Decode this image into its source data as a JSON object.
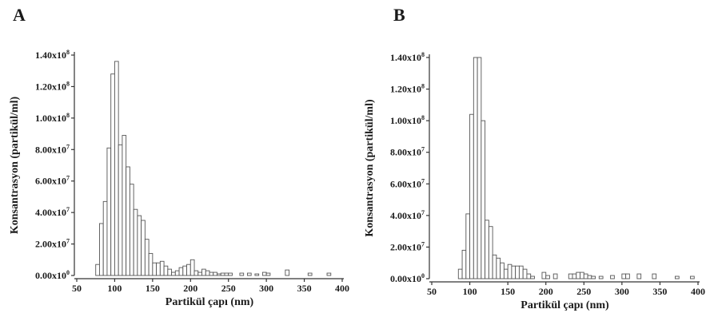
{
  "chart_data": [
    {
      "panel": "A",
      "type": "bar",
      "xlabel": "Partikül çapı (nm)",
      "ylabel": "Konsantrasyon (partikül/ml)",
      "xlim": [
        50,
        400
      ],
      "ylim": [
        0,
        140000000.0
      ],
      "x_ticks": [
        50,
        100,
        150,
        200,
        250,
        300,
        350,
        400
      ],
      "x_tick_labels": [
        "50",
        "100",
        "150",
        "200",
        "250",
        "300",
        "350",
        "400"
      ],
      "y_ticks": [
        0,
        20000000.0,
        40000000.0,
        60000000.0,
        80000000.0,
        100000000.0,
        120000000.0,
        140000000.0
      ],
      "y_tick_labels": [
        {
          "mantissa": "0.00x10",
          "exp": "0"
        },
        {
          "mantissa": "2.00x10",
          "exp": "7"
        },
        {
          "mantissa": "4.00x10",
          "exp": "7"
        },
        {
          "mantissa": "6.00x10",
          "exp": "7"
        },
        {
          "mantissa": "8.00x10",
          "exp": "7"
        },
        {
          "mantissa": "1.00x10",
          "exp": "8"
        },
        {
          "mantissa": "1.20x10",
          "exp": "8"
        },
        {
          "mantissa": "1.40x10",
          "exp": "8"
        }
      ],
      "bin_width": 5,
      "bins": [
        {
          "x": 77.5,
          "y": 7000000.0
        },
        {
          "x": 82.5,
          "y": 33000000.0
        },
        {
          "x": 87.5,
          "y": 47000000.0
        },
        {
          "x": 92.5,
          "y": 81000000.0
        },
        {
          "x": 97.5,
          "y": 128000000.0
        },
        {
          "x": 102.5,
          "y": 136000000.0
        },
        {
          "x": 107.5,
          "y": 83000000.0
        },
        {
          "x": 112.5,
          "y": 89000000.0
        },
        {
          "x": 117.5,
          "y": 69000000.0
        },
        {
          "x": 122.5,
          "y": 58000000.0
        },
        {
          "x": 127.5,
          "y": 42000000.0
        },
        {
          "x": 132.5,
          "y": 38000000.0
        },
        {
          "x": 137.5,
          "y": 35000000.0
        },
        {
          "x": 142.5,
          "y": 23000000.0
        },
        {
          "x": 147.5,
          "y": 14000000.0
        },
        {
          "x": 152.5,
          "y": 8000000.0
        },
        {
          "x": 157.5,
          "y": 8000000.0
        },
        {
          "x": 162.5,
          "y": 9000000.0
        },
        {
          "x": 167.5,
          "y": 6000000.0
        },
        {
          "x": 172.5,
          "y": 4000000.0
        },
        {
          "x": 177.5,
          "y": 2000000.0
        },
        {
          "x": 182.5,
          "y": 3000000.0
        },
        {
          "x": 187.5,
          "y": 5000000.0
        },
        {
          "x": 192.5,
          "y": 6000000.0
        },
        {
          "x": 197.5,
          "y": 7000000.0
        },
        {
          "x": 202.5,
          "y": 10000000.0
        },
        {
          "x": 207.5,
          "y": 3000000.0
        },
        {
          "x": 212.5,
          "y": 2000000.0
        },
        {
          "x": 217.5,
          "y": 4000000.0
        },
        {
          "x": 222.5,
          "y": 3000000.0
        },
        {
          "x": 227.5,
          "y": 2000000.0
        },
        {
          "x": 232.5,
          "y": 2000000.0
        },
        {
          "x": 237.5,
          "y": 1000000.0
        },
        {
          "x": 242.5,
          "y": 1500000.0
        },
        {
          "x": 247.5,
          "y": 1500000.0
        },
        {
          "x": 252.5,
          "y": 1500000.0
        },
        {
          "x": 267.5,
          "y": 1500000.0
        },
        {
          "x": 277.5,
          "y": 1500000.0
        },
        {
          "x": 287.5,
          "y": 1000000.0
        },
        {
          "x": 297.5,
          "y": 2000000.0
        },
        {
          "x": 302.5,
          "y": 1500000.0
        },
        {
          "x": 327.5,
          "y": 3500000.0
        },
        {
          "x": 357.5,
          "y": 1500000.0
        },
        {
          "x": 382.5,
          "y": 1500000.0
        }
      ]
    },
    {
      "panel": "B",
      "type": "bar",
      "xlabel": "Partikül çapı (nm)",
      "ylabel": "Konsantrasyon (partikül/ml)",
      "xlim": [
        50,
        400
      ],
      "ylim": [
        0,
        140000000.0
      ],
      "x_ticks": [
        50,
        100,
        150,
        200,
        250,
        300,
        350,
        400
      ],
      "x_tick_labels": [
        "50",
        "100",
        "150",
        "200",
        "250",
        "300",
        "350",
        "400"
      ],
      "y_ticks": [
        0,
        20000000.0,
        40000000.0,
        60000000.0,
        80000000.0,
        100000000.0,
        120000000.0,
        140000000.0
      ],
      "y_tick_labels": [
        {
          "mantissa": "0.00x10",
          "exp": "0"
        },
        {
          "mantissa": "2.00x10",
          "exp": "7"
        },
        {
          "mantissa": "4.00x10",
          "exp": "7"
        },
        {
          "mantissa": "6.00x10",
          "exp": "7"
        },
        {
          "mantissa": "8.00x10",
          "exp": "7"
        },
        {
          "mantissa": "1.00x10",
          "exp": "8"
        },
        {
          "mantissa": "1.20x10",
          "exp": "8"
        },
        {
          "mantissa": "1.40x10",
          "exp": "8"
        }
      ],
      "bin_width": 5,
      "bins": [
        {
          "x": 87.5,
          "y": 6000000.0
        },
        {
          "x": 92.5,
          "y": 18000000.0
        },
        {
          "x": 97.5,
          "y": 41000000.0
        },
        {
          "x": 102.5,
          "y": 104000000.0
        },
        {
          "x": 107.5,
          "y": 140000000.0
        },
        {
          "x": 112.5,
          "y": 140000000.0
        },
        {
          "x": 117.5,
          "y": 100000000.0
        },
        {
          "x": 122.5,
          "y": 37000000.0
        },
        {
          "x": 127.5,
          "y": 33000000.0
        },
        {
          "x": 132.5,
          "y": 15000000.0
        },
        {
          "x": 137.5,
          "y": 13000000.0
        },
        {
          "x": 142.5,
          "y": 10000000.0
        },
        {
          "x": 147.5,
          "y": 6000000.0
        },
        {
          "x": 152.5,
          "y": 9000000.0
        },
        {
          "x": 157.5,
          "y": 8000000.0
        },
        {
          "x": 162.5,
          "y": 8000000.0
        },
        {
          "x": 167.5,
          "y": 8000000.0
        },
        {
          "x": 172.5,
          "y": 6000000.0
        },
        {
          "x": 177.5,
          "y": 3000000.0
        },
        {
          "x": 182.5,
          "y": 1500000.0
        },
        {
          "x": 197.5,
          "y": 4000000.0
        },
        {
          "x": 202.5,
          "y": 2000000.0
        },
        {
          "x": 212.5,
          "y": 3000000.0
        },
        {
          "x": 232.5,
          "y": 3000000.0
        },
        {
          "x": 237.5,
          "y": 3000000.0
        },
        {
          "x": 242.5,
          "y": 4000000.0
        },
        {
          "x": 247.5,
          "y": 4000000.0
        },
        {
          "x": 252.5,
          "y": 3000000.0
        },
        {
          "x": 257.5,
          "y": 2000000.0
        },
        {
          "x": 262.5,
          "y": 1500000.0
        },
        {
          "x": 272.5,
          "y": 1500000.0
        },
        {
          "x": 287.5,
          "y": 2000000.0
        },
        {
          "x": 302.5,
          "y": 3000000.0
        },
        {
          "x": 307.5,
          "y": 3000000.0
        },
        {
          "x": 322.5,
          "y": 3000000.0
        },
        {
          "x": 342.5,
          "y": 3000000.0
        },
        {
          "x": 372.5,
          "y": 1500000.0
        },
        {
          "x": 392.5,
          "y": 1500000.0
        }
      ]
    }
  ]
}
